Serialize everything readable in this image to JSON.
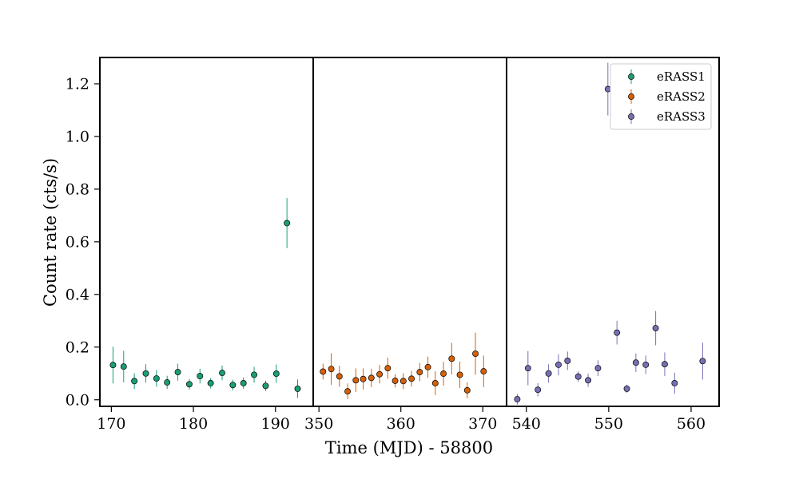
{
  "chart_data": {
    "type": "scatter",
    "xlabel": "Time (MJD) - 58800",
    "ylabel": "Count rate (cts/s)",
    "ylim": [
      -0.025,
      1.3
    ],
    "yticks": [
      0.0,
      0.2,
      0.4,
      0.6,
      0.8,
      1.0,
      1.2
    ],
    "ytick_labels": [
      "0.0",
      "0.2",
      "0.4",
      "0.6",
      "0.8",
      "1.0",
      "1.2"
    ],
    "legend_position": "top-right",
    "panels": [
      {
        "xlim": [
          168.6,
          194.6
        ],
        "xticks": [
          170,
          180,
          190
        ],
        "xtick_labels": [
          "170",
          "180",
          "190"
        ]
      },
      {
        "xlim": [
          349.3,
          372.9
        ],
        "xticks": [
          350,
          360,
          370
        ],
        "xtick_labels": [
          "350",
          "360",
          "370"
        ]
      },
      {
        "xlim": [
          537.6,
          563.4
        ],
        "xticks": [
          540,
          550,
          560
        ],
        "xtick_labels": [
          "540",
          "550",
          "560"
        ]
      }
    ],
    "series": [
      {
        "name": "eRASS1",
        "color": "#1b9e77",
        "panel": 0,
        "x": [
          170.2,
          171.5,
          172.8,
          174.2,
          175.5,
          176.8,
          178.1,
          179.5,
          180.8,
          182.1,
          183.5,
          184.8,
          186.1,
          187.4,
          188.8,
          190.1,
          191.4,
          192.7
        ],
        "y": [
          0.132,
          0.126,
          0.071,
          0.1,
          0.081,
          0.066,
          0.105,
          0.059,
          0.09,
          0.063,
          0.102,
          0.056,
          0.063,
          0.095,
          0.053,
          0.099,
          0.671,
          0.042
        ],
        "err": [
          0.07,
          0.06,
          0.03,
          0.035,
          0.032,
          0.025,
          0.032,
          0.02,
          0.028,
          0.02,
          0.028,
          0.02,
          0.022,
          0.03,
          0.02,
          0.035,
          0.095,
          0.035
        ]
      },
      {
        "name": "eRASS2",
        "color": "#d95f02",
        "panel": 1,
        "x": [
          350.5,
          351.5,
          352.5,
          353.5,
          354.5,
          355.4,
          356.4,
          357.4,
          358.4,
          359.3,
          360.3,
          361.3,
          362.3,
          363.3,
          364.2,
          365.2,
          366.2,
          367.2,
          368.1,
          369.1,
          370.1
        ],
        "y": [
          0.107,
          0.117,
          0.089,
          0.032,
          0.074,
          0.079,
          0.083,
          0.097,
          0.12,
          0.072,
          0.071,
          0.08,
          0.105,
          0.124,
          0.063,
          0.099,
          0.156,
          0.095,
          0.036,
          0.175,
          0.108
        ]
      },
      {
        "name": "eRASS3",
        "color": "#7570b3",
        "panel": 2,
        "x": [
          538.9,
          540.2,
          541.4,
          542.7,
          543.9,
          545.0,
          546.3,
          547.5,
          548.7,
          549.9,
          551.0,
          552.2,
          553.3,
          554.5,
          555.7,
          556.8,
          558.0,
          561.4
        ],
        "y": [
          0.002,
          0.12,
          0.038,
          0.1,
          0.133,
          0.148,
          0.088,
          0.074,
          0.12,
          1.18,
          0.255,
          0.042,
          0.141,
          0.133,
          0.272,
          0.135,
          0.063,
          0.147
        ]
      }
    ]
  }
}
